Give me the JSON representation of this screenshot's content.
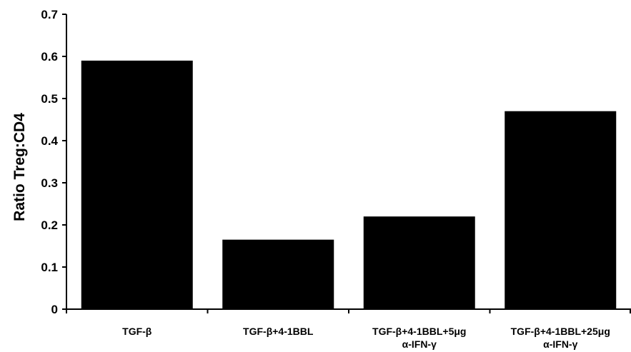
{
  "chart_data": {
    "type": "bar",
    "title": "",
    "xlabel": "",
    "ylabel": "Ratio Treg:CD4",
    "ylim": [
      0,
      0.7
    ],
    "yticks": [
      "0",
      "0.1",
      "0.2",
      "0.3",
      "0.4",
      "0.5",
      "0.6",
      "0.7"
    ],
    "categories": [
      [
        "TGF-β"
      ],
      [
        "TGF-β+4-1BBL"
      ],
      [
        "TGF-β+4-1BBL+5μg",
        "α-IFN-γ"
      ],
      [
        "TGF-β+4-1BBL+25μg",
        "α-IFN-γ"
      ]
    ],
    "values": [
      0.59,
      0.165,
      0.22,
      0.47
    ],
    "bar_color": "#000000",
    "grid": false,
    "legend": "none"
  }
}
